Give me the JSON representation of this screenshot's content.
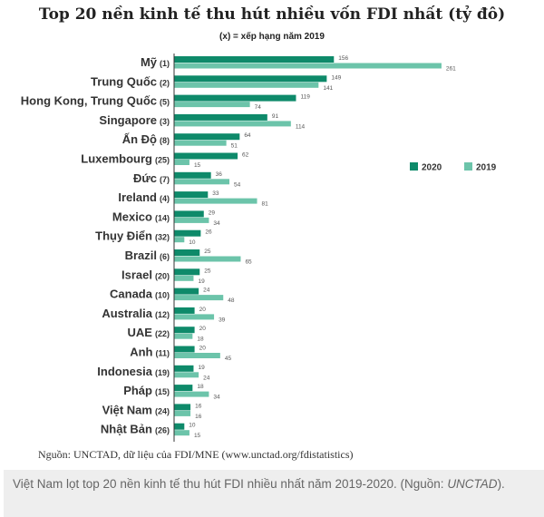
{
  "chart_data": {
    "type": "bar",
    "orientation": "horizontal",
    "title": "Top 20 nền kinh tế thu hút nhiều vốn FDI nhất (tỷ đô)",
    "subtitle": "(x) = xếp hạng năm 2019",
    "categories": [
      "Mỹ",
      "Trung Quốc",
      "Hong Kong, Trung Quốc",
      "Singapore",
      "Ấn Độ",
      "Luxembourg",
      "Đức",
      "Ireland",
      "Mexico",
      "Thụy Điển",
      "Brazil",
      "Israel",
      "Canada",
      "Australia",
      "UAE",
      "Anh",
      "Indonesia",
      "Pháp",
      "Việt Nam",
      "Nhật Bản"
    ],
    "ranks_2019": [
      "(1)",
      "(2)",
      "(5)",
      "(3)",
      "(8)",
      "(25)",
      "(7)",
      "(4)",
      "(14)",
      "(32)",
      "(6)",
      "(20)",
      "(10)",
      "(12)",
      "(22)",
      "(11)",
      "(19)",
      "(15)",
      "(24)",
      "(26)"
    ],
    "series": [
      {
        "name": "2020",
        "color": "#0e8a6a",
        "values": [
          156,
          149,
          119,
          91,
          64,
          62,
          36,
          33,
          29,
          26,
          25,
          25,
          24,
          20,
          20,
          20,
          19,
          18,
          16,
          10
        ]
      },
      {
        "name": "2019",
        "color": "#6cc4aa",
        "values": [
          261,
          141,
          74,
          114,
          51,
          15,
          54,
          81,
          34,
          10,
          65,
          19,
          48,
          39,
          18,
          45,
          24,
          34,
          16,
          15
        ]
      }
    ],
    "legend": "right",
    "xlim": [
      0,
      270
    ]
  },
  "source": "Nguồn: UNCTAD, dữ liệu của FDI/MNE (www.unctad.org/fdistatistics)",
  "caption": {
    "text": "Việt Nam lọt top 20 nền kinh tế thu hút FDI nhiều nhất năm 2019-2020. (Nguồn: ",
    "source": "UNCTAD",
    "end": ")."
  }
}
